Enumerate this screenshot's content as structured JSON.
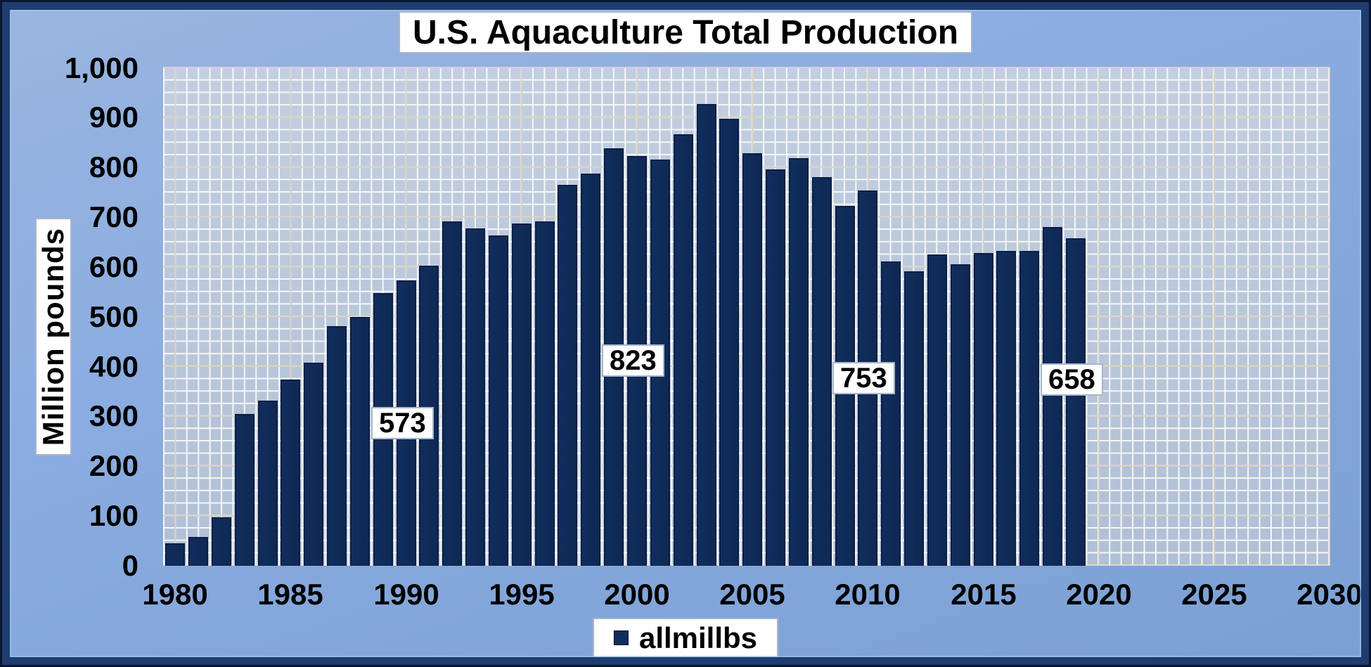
{
  "title": "U.S. Aquaculture Total Production",
  "y_axis": {
    "title": "Million pounds",
    "ticks": [
      "0",
      "100",
      "200",
      "300",
      "400",
      "500",
      "600",
      "700",
      "800",
      "900",
      "1,000"
    ]
  },
  "x_axis": {
    "ticks": [
      "1980",
      "1985",
      "1990",
      "1995",
      "2000",
      "2005",
      "2010",
      "2015",
      "2020",
      "2025",
      "2030"
    ]
  },
  "legend": {
    "label": "allmillbs"
  },
  "colors": {
    "bar": "#112d5d",
    "bar_border": "#091e44",
    "plot_background": "#b7c5d8",
    "grid_minor": "#faf9f5",
    "grid_major": "#dbd2c0",
    "frame": "#1e3d70",
    "frame_outer": "#081631",
    "background_top": "#9ab5e0",
    "background_bottom": "#7ba0d3",
    "text": "#000000"
  },
  "chart_data": {
    "type": "bar",
    "title": "U.S. Aquaculture Total Production",
    "xlabel": "",
    "ylabel": "Million pounds",
    "xlim": [
      1980,
      2030
    ],
    "ylim": [
      0,
      1000
    ],
    "x_tick_step": 5,
    "y_tick_step": 100,
    "grid": "minor and major gridlines on, white minor / cream major",
    "legend_position": "bottom-center",
    "series": [
      {
        "name": "allmillbs",
        "color": "#112d5d",
        "x": [
          1980,
          1981,
          1982,
          1983,
          1984,
          1985,
          1986,
          1987,
          1988,
          1989,
          1990,
          1991,
          1992,
          1993,
          1994,
          1995,
          1996,
          1997,
          1998,
          1999,
          2000,
          2001,
          2002,
          2003,
          2004,
          2005,
          2006,
          2007,
          2008,
          2009,
          2010,
          2011,
          2012,
          2013,
          2014,
          2015,
          2016,
          2017,
          2018,
          2019
        ],
        "values": [
          45,
          58,
          97,
          305,
          331,
          374,
          408,
          481,
          499,
          547,
          573,
          602,
          691,
          677,
          663,
          688,
          692,
          765,
          787,
          839,
          823,
          816,
          866,
          928,
          898,
          829,
          796,
          819,
          780,
          722,
          753,
          611,
          591,
          625,
          605,
          628,
          633,
          632,
          680,
          658
        ]
      }
    ],
    "data_labels": [
      {
        "x": 1990,
        "value": 573
      },
      {
        "x": 2000,
        "value": 823
      },
      {
        "x": 2010,
        "value": 753
      },
      {
        "x": 2019,
        "value": 658
      }
    ]
  }
}
